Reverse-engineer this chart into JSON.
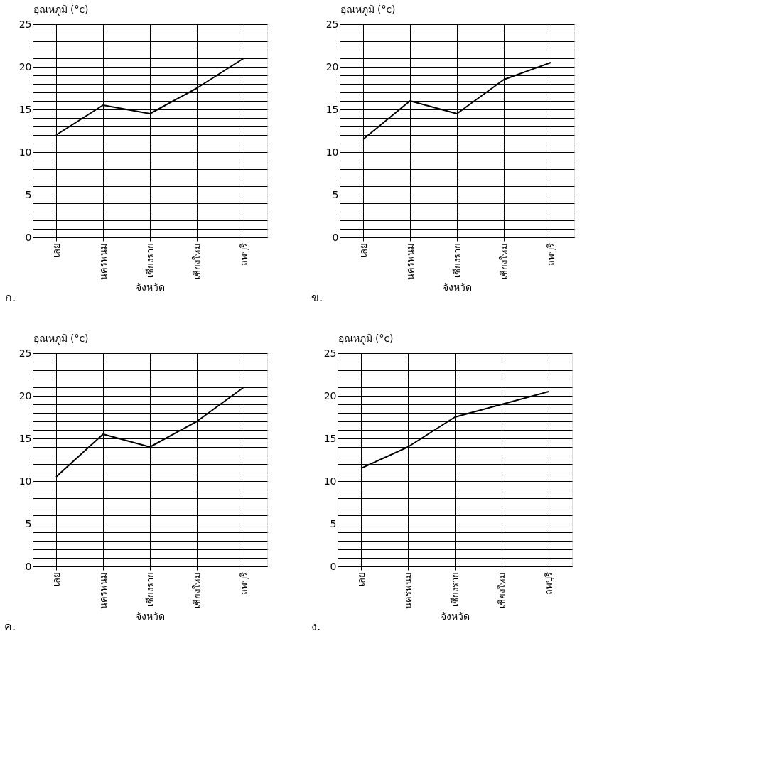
{
  "chart_data": [
    {
      "type": "line",
      "title": "ก.",
      "xlabel": "จังหวัด",
      "ylabel": "อุณหภูมิ (°c)",
      "categories": [
        "เลย",
        "นครพนม",
        "เชียงราย",
        "เชียงใหม่",
        "ลพบุรี"
      ],
      "series": [
        {
          "color": "#000000",
          "values": [
            12,
            15.5,
            14.5,
            17.5,
            21
          ]
        }
      ],
      "ylim": [
        0,
        25
      ],
      "yticks": [
        0,
        {
          "value": 1,
          "label": null
        },
        {
          "value": 2,
          "label": null
        },
        {
          "value": 3,
          "label": null
        },
        {
          "value": 4,
          "label": null
        },
        5,
        {
          "value": 6,
          "label": null
        },
        {
          "value": 7,
          "label": null
        },
        {
          "value": 8,
          "label": null
        },
        {
          "value": 9,
          "label": null
        },
        10,
        {
          "value": 11,
          "label": null
        },
        {
          "value": 12,
          "label": null
        },
        {
          "value": 13,
          "label": null
        },
        {
          "value": 14,
          "label": null
        },
        15,
        {
          "value": 16,
          "label": null
        },
        {
          "value": 17,
          "label": null
        },
        {
          "value": 18,
          "label": null
        },
        {
          "value": 19,
          "label": null
        },
        20,
        {
          "value": 21,
          "label": null
        },
        {
          "value": 22,
          "label": null
        },
        {
          "value": 23,
          "label": null
        },
        {
          "value": 24,
          "label": null
        },
        25
      ],
      "grid": true,
      "marker": "none",
      "line_style": "solid"
    },
    {
      "type": "line",
      "title": "ข.",
      "xlabel": "จังหวัด",
      "ylabel": "อุณหภูมิ (°c)",
      "categories": [
        "เลย",
        "นครพนม",
        "เชียงราย",
        "เชียงใหม่",
        "ลพบุรี"
      ],
      "series": [
        {
          "color": "#000000",
          "values": [
            11.5,
            16,
            14.5,
            18.5,
            20.5
          ]
        }
      ],
      "ylim": [
        0,
        25
      ],
      "yticks": [
        0,
        {
          "value": 1,
          "label": null
        },
        {
          "value": 2,
          "label": null
        },
        {
          "value": 3,
          "label": null
        },
        {
          "value": 4,
          "label": null
        },
        5,
        {
          "value": 6,
          "label": null
        },
        {
          "value": 7,
          "label": null
        },
        {
          "value": 8,
          "label": null
        },
        {
          "value": 9,
          "label": null
        },
        10,
        {
          "value": 11,
          "label": null
        },
        {
          "value": 12,
          "label": null
        },
        {
          "value": 13,
          "label": null
        },
        {
          "value": 14,
          "label": null
        },
        15,
        {
          "value": 16,
          "label": null
        },
        {
          "value": 17,
          "label": null
        },
        {
          "value": 18,
          "label": null
        },
        {
          "value": 19,
          "label": null
        },
        20,
        {
          "value": 21,
          "label": null
        },
        {
          "value": 22,
          "label": null
        },
        {
          "value": 23,
          "label": null
        },
        {
          "value": 24,
          "label": null
        },
        25
      ],
      "grid": true,
      "marker": "none",
      "line_style": "solid"
    },
    {
      "type": "line",
      "title": "ค.",
      "xlabel": "จังหวัด",
      "ylabel": "อุณหภูมิ (°c)",
      "categories": [
        "เลย",
        "นครพนม",
        "เชียงราย",
        "เชียงใหม่",
        "ลพบุรี"
      ],
      "series": [
        {
          "color": "#000000",
          "values": [
            10.5,
            15.5,
            14,
            17,
            21
          ]
        }
      ],
      "ylim": [
        0,
        25
      ],
      "yticks": [
        0,
        {
          "value": 1,
          "label": null
        },
        {
          "value": 2,
          "label": null
        },
        {
          "value": 3,
          "label": null
        },
        {
          "value": 4,
          "label": null
        },
        5,
        {
          "value": 6,
          "label": null
        },
        {
          "value": 7,
          "label": null
        },
        {
          "value": 8,
          "label": null
        },
        {
          "value": 9,
          "label": null
        },
        10,
        {
          "value": 11,
          "label": null
        },
        {
          "value": 12,
          "label": null
        },
        {
          "value": 13,
          "label": null
        },
        {
          "value": 14,
          "label": null
        },
        15,
        {
          "value": 16,
          "label": null
        },
        {
          "value": 17,
          "label": null
        },
        {
          "value": 18,
          "label": null
        },
        {
          "value": 19,
          "label": null
        },
        20,
        {
          "value": 21,
          "label": null
        },
        {
          "value": 22,
          "label": null
        },
        {
          "value": 23,
          "label": null
        },
        {
          "value": 24,
          "label": null
        },
        25
      ],
      "grid": true,
      "marker": "none",
      "line_style": "solid"
    },
    {
      "type": "line",
      "title": "ง.",
      "xlabel": "จังหวัด",
      "ylabel": "อุณหภูมิ (°c)",
      "categories": [
        "เลย",
        "นครพนม",
        "เชียงราย",
        "เชียงใหม่",
        "ลพบุรี"
      ],
      "series": [
        {
          "color": "#000000",
          "values": [
            11.5,
            14,
            17.5,
            19,
            20.5
          ]
        }
      ],
      "ylim": [
        0,
        25
      ],
      "yticks": [
        0,
        {
          "value": 1,
          "label": null
        },
        {
          "value": 2,
          "label": null
        },
        {
          "value": 3,
          "label": null
        },
        {
          "value": 4,
          "label": null
        },
        5,
        {
          "value": 6,
          "label": null
        },
        {
          "value": 7,
          "label": null
        },
        {
          "value": 8,
          "label": null
        },
        {
          "value": 9,
          "label": null
        },
        10,
        {
          "value": 11,
          "label": null
        },
        {
          "value": 12,
          "label": null
        },
        {
          "value": 13,
          "label": null
        },
        {
          "value": 14,
          "label": null
        },
        15,
        {
          "value": 16,
          "label": null
        },
        {
          "value": 17,
          "label": null
        },
        {
          "value": 18,
          "label": null
        },
        {
          "value": 19,
          "label": null
        },
        20,
        {
          "value": 21,
          "label": null
        },
        {
          "value": 22,
          "label": null
        },
        {
          "value": 23,
          "label": null
        },
        {
          "value": 24,
          "label": null
        },
        25
      ],
      "grid": true,
      "marker": "none",
      "line_style": "solid"
    }
  ]
}
